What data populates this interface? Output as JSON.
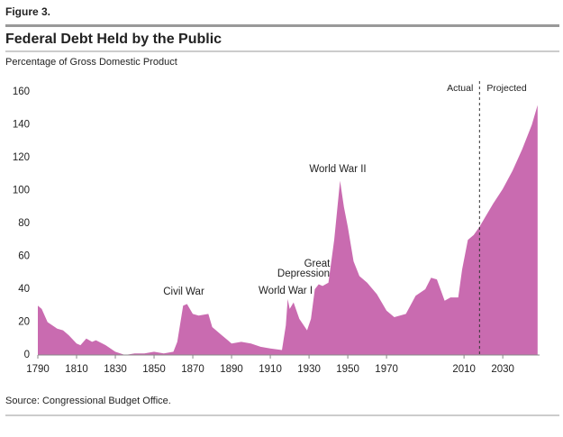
{
  "figure_label": "Figure 3.",
  "chart_data": {
    "type": "area",
    "title": "Federal Debt Held by the Public",
    "subtitle": "Percentage of Gross Domestic Product",
    "source": "Source: Congressional Budget Office.",
    "x": [
      1790,
      1792,
      1795,
      1800,
      1803,
      1806,
      1810,
      1812,
      1815,
      1818,
      1820,
      1825,
      1830,
      1835,
      1840,
      1845,
      1850,
      1855,
      1860,
      1862,
      1865,
      1867,
      1870,
      1873,
      1878,
      1880,
      1885,
      1890,
      1895,
      1900,
      1905,
      1910,
      1916,
      1918,
      1919,
      1920,
      1922,
      1925,
      1929,
      1931,
      1933,
      1935,
      1937,
      1940,
      1943,
      1946,
      1948,
      1950,
      1953,
      1956,
      1960,
      1965,
      1970,
      1974,
      1980,
      1985,
      1990,
      1993,
      1996,
      2000,
      2003,
      2007,
      2009,
      2012,
      2015,
      2018,
      2020,
      2025,
      2030,
      2035,
      2040,
      2045,
      2048
    ],
    "values": [
      30,
      28,
      20,
      16,
      15,
      12,
      7,
      6,
      10,
      8,
      9,
      6,
      2,
      0,
      1,
      1,
      2,
      1,
      2,
      8,
      30,
      31,
      25,
      24,
      25,
      17,
      12,
      7,
      8,
      7,
      5,
      4,
      3,
      18,
      34,
      28,
      32,
      22,
      15,
      22,
      40,
      43,
      42,
      44,
      70,
      106,
      90,
      78,
      57,
      48,
      44,
      37,
      27,
      23,
      25,
      36,
      40,
      47,
      46,
      33,
      35,
      35,
      52,
      70,
      73,
      78,
      82,
      92,
      101,
      112,
      125,
      140,
      152
    ],
    "color": "#c96bb0",
    "xlim": [
      1790,
      2049
    ],
    "ylim": [
      0,
      160
    ],
    "xticks": [
      1790,
      1810,
      1830,
      1850,
      1870,
      1890,
      1910,
      1930,
      1950,
      1970,
      2010,
      2030
    ],
    "yticks": [
      0,
      20,
      40,
      60,
      80,
      100,
      120,
      140,
      160
    ],
    "divider": {
      "x": 2018,
      "left_label": "Actual",
      "right_label": "Projected"
    },
    "annotations": [
      "Civil War",
      "World War I",
      "Great",
      "Depression",
      "World War II"
    ]
  }
}
